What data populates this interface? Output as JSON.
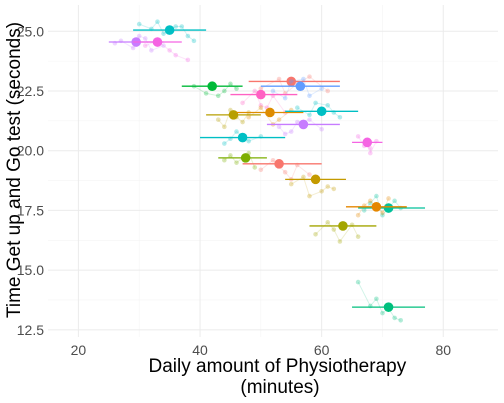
{
  "chart_data": {
    "type": "scatter",
    "xlabel": "Daily amount of Physiotherapy\n(minutes)",
    "ylabel": "Time Get up and Go test (seconds)",
    "xlim": [
      15,
      89
    ],
    "ylim": [
      12.2,
      26.1
    ],
    "x_ticks": [
      20,
      40,
      60,
      80
    ],
    "y_ticks": [
      12.5,
      15.0,
      17.5,
      20.0,
      22.5,
      25.0
    ],
    "grid": true,
    "legend": "none",
    "groups": [
      {
        "color": "#00BFC4",
        "mean": {
          "x": 35.0,
          "y": 25.05
        },
        "ci": [
          29.0,
          41.0
        ],
        "points": [
          [
            30,
            25.3
          ],
          [
            32,
            25.1
          ],
          [
            34,
            24.9
          ],
          [
            36,
            25.2
          ],
          [
            38,
            24.8
          ],
          [
            33,
            25.4
          ],
          [
            39,
            24.6
          ],
          [
            37,
            25.2
          ]
        ]
      },
      {
        "color": "#C77CFF",
        "mean": {
          "x": 29.5,
          "y": 24.55
        },
        "ci": [
          25.0,
          34.0
        ],
        "points": [
          [
            27,
            24.6
          ],
          [
            29,
            24.3
          ],
          [
            31,
            24.7
          ],
          [
            34,
            24.4
          ],
          [
            26,
            24.5
          ],
          [
            32,
            24.2
          ],
          [
            30,
            24.8
          ]
        ]
      },
      {
        "color": "#F564E3",
        "mean": {
          "x": 33.0,
          "y": 24.55
        },
        "ci": [
          29.0,
          37.0
        ],
        "points": [
          [
            31,
            24.4
          ],
          [
            35,
            24.2
          ],
          [
            36,
            24.0
          ],
          [
            38,
            23.8
          ],
          [
            33,
            24.6
          ]
        ]
      },
      {
        "color": "#00BA38",
        "mean": {
          "x": 42.0,
          "y": 22.7
        },
        "ci": [
          37.0,
          47.0
        ],
        "points": [
          [
            39,
            22.7
          ],
          [
            41,
            22.4
          ],
          [
            44,
            22.5
          ],
          [
            45,
            22.8
          ],
          [
            43,
            22.3
          ],
          [
            46,
            22.6
          ]
        ]
      },
      {
        "color": "#F8766D",
        "mean": {
          "x": 55.0,
          "y": 22.9
        },
        "ci": [
          48.0,
          63.0
        ],
        "points": [
          [
            50,
            22.6
          ],
          [
            53,
            23.0
          ],
          [
            56,
            22.8
          ],
          [
            58,
            23.1
          ],
          [
            61,
            22.5
          ],
          [
            54,
            22.4
          ]
        ]
      },
      {
        "color": "#619CFF",
        "mean": {
          "x": 56.5,
          "y": 22.7
        },
        "ci": [
          50.0,
          63.0
        ],
        "points": [
          [
            52,
            22.5
          ],
          [
            55,
            22.9
          ],
          [
            58,
            22.3
          ],
          [
            60,
            22.6
          ],
          [
            54,
            22.2
          ],
          [
            57,
            23.0
          ]
        ]
      },
      {
        "color": "#FF61C3",
        "mean": {
          "x": 50.0,
          "y": 22.35
        },
        "ci": [
          45.0,
          56.0
        ],
        "points": [
          [
            47,
            22.0
          ],
          [
            49,
            22.5
          ],
          [
            51,
            21.8
          ],
          [
            52,
            22.3
          ],
          [
            54,
            21.6
          ],
          [
            50,
            21.9
          ]
        ]
      },
      {
        "color": "#B79F00",
        "mean": {
          "x": 45.5,
          "y": 21.5
        },
        "ci": [
          41.0,
          50.0
        ],
        "points": [
          [
            43,
            21.3
          ],
          [
            45,
            21.7
          ],
          [
            47,
            21.2
          ],
          [
            48,
            21.6
          ],
          [
            44,
            21.0
          ],
          [
            46,
            21.4
          ]
        ]
      },
      {
        "color": "#DE8C00",
        "mean": {
          "x": 51.5,
          "y": 21.6
        },
        "ci": [
          46.0,
          57.0
        ],
        "points": [
          [
            48,
            21.4
          ],
          [
            50,
            21.8
          ],
          [
            53,
            21.3
          ],
          [
            55,
            21.7
          ],
          [
            52,
            21.1
          ]
        ]
      },
      {
        "color": "#00BFC4",
        "mean": {
          "x": 60.0,
          "y": 21.65
        },
        "ci": [
          54.0,
          66.0
        ],
        "points": [
          [
            56,
            21.8
          ],
          [
            58,
            21.5
          ],
          [
            61,
            21.9
          ],
          [
            63,
            21.4
          ],
          [
            59,
            22.0
          ],
          [
            62,
            21.6
          ]
        ]
      },
      {
        "color": "#C77CFF",
        "mean": {
          "x": 57.0,
          "y": 21.1
        },
        "ci": [
          51.0,
          63.0
        ],
        "points": [
          [
            53,
            21.0
          ],
          [
            55,
            20.8
          ],
          [
            58,
            21.3
          ],
          [
            60,
            20.9
          ],
          [
            56,
            21.2
          ],
          [
            54,
            20.7
          ]
        ]
      },
      {
        "color": "#00BFC4",
        "mean": {
          "x": 47.0,
          "y": 20.55
        },
        "ci": [
          40.0,
          54.0
        ],
        "points": [
          [
            44,
            20.3
          ],
          [
            46,
            20.8
          ],
          [
            48,
            20.4
          ],
          [
            50,
            20.6
          ],
          [
            45,
            20.5
          ]
        ]
      },
      {
        "color": "#F564E3",
        "mean": {
          "x": 67.5,
          "y": 20.35
        },
        "ci": [
          65.0,
          70.0
        ],
        "points": [
          [
            66,
            20.6
          ],
          [
            67,
            20.2
          ],
          [
            68,
            20.1
          ],
          [
            69,
            20.4
          ],
          [
            68,
            19.9
          ]
        ]
      },
      {
        "color": "#7CAE00",
        "mean": {
          "x": 47.5,
          "y": 19.7
        },
        "ci": [
          43.0,
          51.0
        ],
        "points": [
          [
            45,
            19.8
          ],
          [
            46,
            19.5
          ],
          [
            48,
            19.9
          ],
          [
            49,
            19.3
          ],
          [
            44,
            19.6
          ]
        ]
      },
      {
        "color": "#F8766D",
        "mean": {
          "x": 53.0,
          "y": 19.45
        },
        "ci": [
          47.0,
          60.0
        ],
        "points": [
          [
            50,
            19.2
          ],
          [
            52,
            19.6
          ],
          [
            54,
            19.1
          ],
          [
            56,
            19.4
          ],
          [
            58,
            19.0
          ],
          [
            55,
            18.8
          ]
        ]
      },
      {
        "color": "#C49A00",
        "mean": {
          "x": 59.0,
          "y": 18.8
        },
        "ci": [
          54.0,
          64.0
        ],
        "points": [
          [
            55,
            18.6
          ],
          [
            57,
            18.9
          ],
          [
            60,
            18.3
          ],
          [
            61,
            18.5
          ],
          [
            58,
            18.1
          ],
          [
            62,
            18.4
          ]
        ]
      },
      {
        "color": "#00C19A",
        "mean": {
          "x": 71.0,
          "y": 17.6
        },
        "ci": [
          66.0,
          77.0
        ],
        "points": [
          [
            67,
            17.5
          ],
          [
            68,
            17.8
          ],
          [
            70,
            17.3
          ],
          [
            72,
            17.9
          ],
          [
            73,
            17.6
          ],
          [
            69,
            18.1
          ]
        ]
      },
      {
        "color": "#E58700",
        "mean": {
          "x": 69.0,
          "y": 17.65
        },
        "ci": [
          64.0,
          74.0
        ],
        "points": [
          [
            66,
            17.3
          ],
          [
            68,
            17.9
          ],
          [
            70,
            17.4
          ],
          [
            71,
            18.0
          ],
          [
            67,
            17.7
          ]
        ]
      },
      {
        "color": "#A3A500",
        "mean": {
          "x": 63.5,
          "y": 16.85
        },
        "ci": [
          58.0,
          69.0
        ],
        "points": [
          [
            59,
            16.5
          ],
          [
            61,
            17.0
          ],
          [
            63,
            16.2
          ],
          [
            65,
            16.9
          ],
          [
            66,
            16.4
          ],
          [
            62,
            16.7
          ]
        ]
      },
      {
        "color": "#00BF7D",
        "mean": {
          "x": 71.0,
          "y": 13.45
        },
        "ci": [
          65.0,
          77.0
        ],
        "points": [
          [
            66,
            14.5
          ],
          [
            68,
            13.5
          ],
          [
            70,
            13.2
          ],
          [
            71,
            13.4
          ],
          [
            72,
            13.0
          ],
          [
            73,
            12.9
          ],
          [
            69,
            13.8
          ]
        ]
      }
    ]
  }
}
